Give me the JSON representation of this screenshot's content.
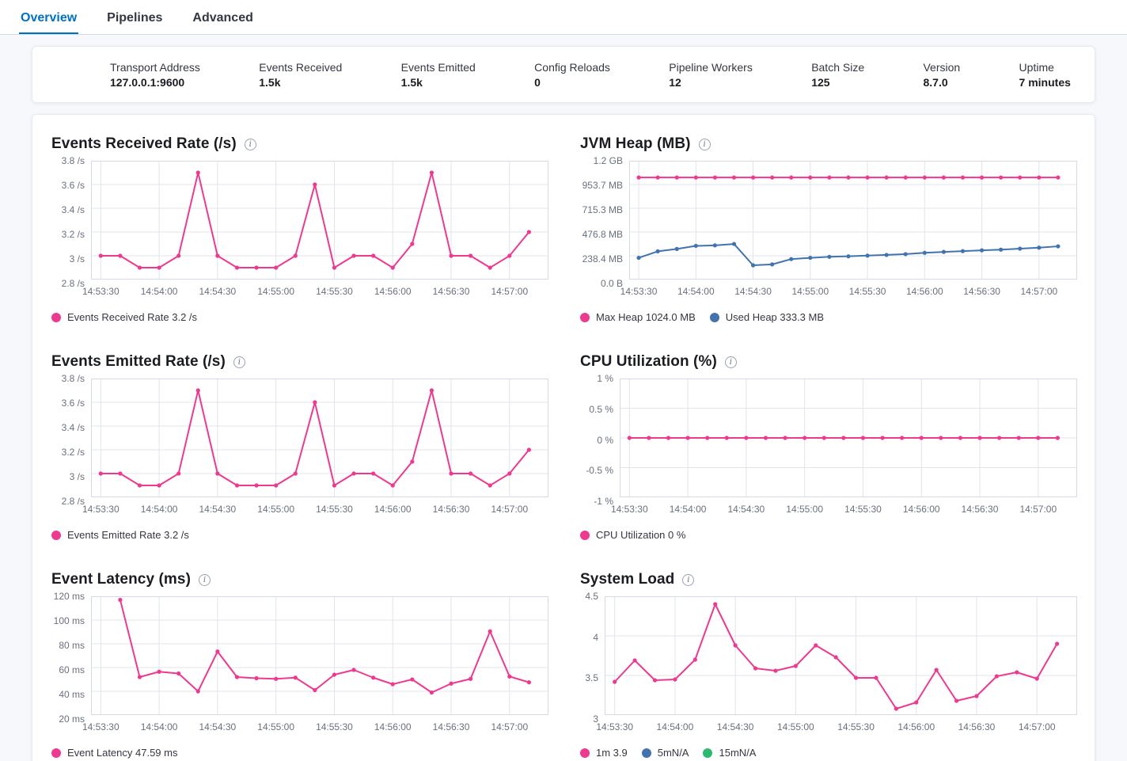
{
  "tabs": {
    "items": [
      {
        "label": "Overview",
        "active": true
      },
      {
        "label": "Pipelines",
        "active": false
      },
      {
        "label": "Advanced",
        "active": false
      }
    ]
  },
  "stats": {
    "items": [
      {
        "label": "Transport Address",
        "value": "127.0.0.1:9600"
      },
      {
        "label": "Events Received",
        "value": "1.5k"
      },
      {
        "label": "Events Emitted",
        "value": "1.5k"
      },
      {
        "label": "Config Reloads",
        "value": "0"
      },
      {
        "label": "Pipeline Workers",
        "value": "12"
      },
      {
        "label": "Batch Size",
        "value": "125"
      },
      {
        "label": "Version",
        "value": "8.7.0"
      },
      {
        "label": "Uptime",
        "value": "7 minutes"
      }
    ]
  },
  "colors": {
    "pink": "#ED398F",
    "blue": "#4273AE",
    "green": "#2FB96E",
    "accent_blue": "#0071C2",
    "gridline": "#E0E4EB",
    "plot_border": "#D3DAE6"
  },
  "chart_data": [
    {
      "type": "line",
      "title": "Events Received Rate (/s)",
      "x": [
        "14:53:30",
        "14:53:40",
        "14:53:50",
        "14:54:00",
        "14:54:10",
        "14:54:20",
        "14:54:30",
        "14:54:40",
        "14:54:50",
        "14:55:00",
        "14:55:10",
        "14:55:20",
        "14:55:30",
        "14:55:40",
        "14:55:50",
        "14:56:00",
        "14:56:10",
        "14:56:20",
        "14:56:30",
        "14:56:40",
        "14:56:50",
        "14:57:00",
        "14:57:10"
      ],
      "x_tick_labels": [
        "14:53:30",
        "14:54:00",
        "14:54:30",
        "14:55:00",
        "14:55:30",
        "14:56:00",
        "14:56:30",
        "14:57:00"
      ],
      "x_tick_step": 3,
      "x_domain": [
        -0.5,
        23
      ],
      "y_min": 2.8,
      "y_max": 3.8,
      "y_ticks": [
        {
          "value": 3.8,
          "label": "3.8 /s"
        },
        {
          "value": 3.6,
          "label": "3.6 /s"
        },
        {
          "value": 3.4,
          "label": "3.4 /s"
        },
        {
          "value": 3.2,
          "label": "3.2 /s"
        },
        {
          "value": 3.0,
          "label": "3 /s"
        },
        {
          "value": 2.8,
          "label": "2.8 /s"
        }
      ],
      "series": [
        {
          "name": "Events Received Rate",
          "color": "pink",
          "start": 0,
          "values": [
            3,
            3,
            2.9,
            2.9,
            3,
            3.7,
            3,
            2.9,
            2.9,
            2.9,
            3,
            3.6,
            2.9,
            3,
            3,
            2.9,
            3.1,
            3.7,
            3,
            3,
            2.9,
            3,
            3.2
          ]
        }
      ],
      "legend": [
        {
          "color": "pink",
          "label": "Events Received Rate 3.2 /s"
        }
      ]
    },
    {
      "type": "line",
      "title": "JVM Heap (MB)",
      "x": [
        "14:53:30",
        "14:53:40",
        "14:53:50",
        "14:54:00",
        "14:54:10",
        "14:54:20",
        "14:54:30",
        "14:54:40",
        "14:54:50",
        "14:55:00",
        "14:55:10",
        "14:55:20",
        "14:55:30",
        "14:55:40",
        "14:55:50",
        "14:56:00",
        "14:56:10",
        "14:56:20",
        "14:56:30",
        "14:56:40",
        "14:56:50",
        "14:57:00",
        "14:57:10"
      ],
      "x_tick_labels": [
        "14:53:30",
        "14:54:00",
        "14:54:30",
        "14:55:00",
        "14:55:30",
        "14:56:00",
        "14:56:30",
        "14:57:00"
      ],
      "x_tick_step": 3,
      "x_domain": [
        -0.5,
        23
      ],
      "y_min": 0,
      "y_max": 1192.1,
      "y_ticks": [
        {
          "value": 1192.1,
          "label": "1.2 GB"
        },
        {
          "value": 953.7,
          "label": "953.7 MB"
        },
        {
          "value": 715.3,
          "label": "715.3 MB"
        },
        {
          "value": 476.8,
          "label": "476.8 MB"
        },
        {
          "value": 238.4,
          "label": "238.4 MB"
        },
        {
          "value": 0,
          "label": "0.0 B"
        }
      ],
      "series": [
        {
          "name": "Max Heap",
          "color": "pink",
          "start": 0,
          "values": [
            1024,
            1024,
            1024,
            1024,
            1024,
            1024,
            1024,
            1024,
            1024,
            1024,
            1024,
            1024,
            1024,
            1024,
            1024,
            1024,
            1024,
            1024,
            1024,
            1024,
            1024,
            1024,
            1024
          ]
        },
        {
          "name": "Used Heap",
          "color": "blue",
          "start": 0,
          "values": [
            218,
            283,
            307,
            338,
            343,
            357,
            143,
            152,
            205,
            218,
            228,
            233,
            240,
            247,
            255,
            268,
            277,
            285,
            293,
            300,
            310,
            320,
            333.3
          ]
        }
      ],
      "legend": [
        {
          "color": "pink",
          "label": "Max Heap 1024.0 MB"
        },
        {
          "color": "blue",
          "label": "Used Heap 333.3 MB"
        }
      ]
    },
    {
      "type": "line",
      "title": "Events Emitted Rate (/s)",
      "x": [
        "14:53:30",
        "14:53:40",
        "14:53:50",
        "14:54:00",
        "14:54:10",
        "14:54:20",
        "14:54:30",
        "14:54:40",
        "14:54:50",
        "14:55:00",
        "14:55:10",
        "14:55:20",
        "14:55:30",
        "14:55:40",
        "14:55:50",
        "14:56:00",
        "14:56:10",
        "14:56:20",
        "14:56:30",
        "14:56:40",
        "14:56:50",
        "14:57:00",
        "14:57:10"
      ],
      "x_tick_labels": [
        "14:53:30",
        "14:54:00",
        "14:54:30",
        "14:55:00",
        "14:55:30",
        "14:56:00",
        "14:56:30",
        "14:57:00"
      ],
      "x_tick_step": 3,
      "x_domain": [
        -0.5,
        23
      ],
      "y_min": 2.8,
      "y_max": 3.8,
      "y_ticks": [
        {
          "value": 3.8,
          "label": "3.8 /s"
        },
        {
          "value": 3.6,
          "label": "3.6 /s"
        },
        {
          "value": 3.4,
          "label": "3.4 /s"
        },
        {
          "value": 3.2,
          "label": "3.2 /s"
        },
        {
          "value": 3.0,
          "label": "3 /s"
        },
        {
          "value": 2.8,
          "label": "2.8 /s"
        }
      ],
      "series": [
        {
          "name": "Events Emitted Rate",
          "color": "pink",
          "start": 0,
          "values": [
            3,
            3,
            2.9,
            2.9,
            3,
            3.7,
            3,
            2.9,
            2.9,
            2.9,
            3,
            3.6,
            2.9,
            3,
            3,
            2.9,
            3.1,
            3.7,
            3,
            3,
            2.9,
            3,
            3.2
          ]
        }
      ],
      "legend": [
        {
          "color": "pink",
          "label": "Events Emitted Rate 3.2 /s"
        }
      ]
    },
    {
      "type": "line",
      "title": "CPU Utilization (%)",
      "x": [
        "14:53:30",
        "14:53:40",
        "14:53:50",
        "14:54:00",
        "14:54:10",
        "14:54:20",
        "14:54:30",
        "14:54:40",
        "14:54:50",
        "14:55:00",
        "14:55:10",
        "14:55:20",
        "14:55:30",
        "14:55:40",
        "14:55:50",
        "14:56:00",
        "14:56:10",
        "14:56:20",
        "14:56:30",
        "14:56:40",
        "14:56:50",
        "14:57:00",
        "14:57:10"
      ],
      "x_tick_labels": [
        "14:53:30",
        "14:54:00",
        "14:54:30",
        "14:55:00",
        "14:55:30",
        "14:56:00",
        "14:56:30",
        "14:57:00"
      ],
      "x_tick_step": 3,
      "x_domain": [
        -0.5,
        23
      ],
      "y_min": -1,
      "y_max": 1,
      "y_ticks": [
        {
          "value": 1,
          "label": "1 %"
        },
        {
          "value": 0.5,
          "label": "0.5 %"
        },
        {
          "value": 0,
          "label": "0 %"
        },
        {
          "value": -0.5,
          "label": "-0.5 %"
        },
        {
          "value": -1,
          "label": "-1 %"
        }
      ],
      "series": [
        {
          "name": "CPU Utilization",
          "color": "pink",
          "start": 0,
          "values": [
            0,
            0,
            0,
            0,
            0,
            0,
            0,
            0,
            0,
            0,
            0,
            0,
            0,
            0,
            0,
            0,
            0,
            0,
            0,
            0,
            0,
            0,
            0
          ]
        }
      ],
      "legend": [
        {
          "color": "pink",
          "label": "CPU Utilization 0 %"
        }
      ]
    },
    {
      "type": "line",
      "title": "Event Latency (ms)",
      "x": [
        "14:53:40",
        "14:53:50",
        "14:54:00",
        "14:54:10",
        "14:54:20",
        "14:54:30",
        "14:54:40",
        "14:54:50",
        "14:55:00",
        "14:55:10",
        "14:55:20",
        "14:55:30",
        "14:55:40",
        "14:55:50",
        "14:56:00",
        "14:56:10",
        "14:56:20",
        "14:56:30",
        "14:56:40",
        "14:56:50",
        "14:57:00",
        "14:57:10"
      ],
      "x_tick_labels": [
        "14:53:30",
        "14:54:00",
        "14:54:30",
        "14:55:00",
        "14:55:30",
        "14:56:00",
        "14:56:30",
        "14:57:00"
      ],
      "x_tick_step": 3,
      "x_domain": [
        -0.5,
        23
      ],
      "y_min": 20,
      "y_max": 120,
      "y_ticks": [
        {
          "value": 120,
          "label": "120 ms"
        },
        {
          "value": 100,
          "label": "100 ms"
        },
        {
          "value": 80,
          "label": "80 ms"
        },
        {
          "value": 60,
          "label": "60 ms"
        },
        {
          "value": 40,
          "label": "40 ms"
        },
        {
          "value": 20,
          "label": "20 ms"
        }
      ],
      "series": [
        {
          "name": "Event Latency",
          "color": "pink",
          "start": 1,
          "values": [
            117,
            52,
            56.5,
            55,
            40,
            73.5,
            52,
            51,
            50.5,
            51.5,
            41,
            54,
            58,
            51.5,
            46,
            50,
            39,
            46.5,
            50.5,
            90.5,
            52.5,
            47.59
          ]
        }
      ],
      "legend": [
        {
          "color": "pink",
          "label": "Event Latency 47.59 ms"
        }
      ]
    },
    {
      "type": "line",
      "title": "System Load",
      "x": [
        "14:53:30",
        "14:53:40",
        "14:53:50",
        "14:54:00",
        "14:54:10",
        "14:54:20",
        "14:54:30",
        "14:54:40",
        "14:54:50",
        "14:55:00",
        "14:55:10",
        "14:55:20",
        "14:55:30",
        "14:55:40",
        "14:55:50",
        "14:56:00",
        "14:56:10",
        "14:56:20",
        "14:56:30",
        "14:56:40",
        "14:56:50",
        "14:57:00",
        "14:57:10"
      ],
      "x_tick_labels": [
        "14:53:30",
        "14:54:00",
        "14:54:30",
        "14:55:00",
        "14:55:30",
        "14:56:00",
        "14:56:30",
        "14:57:00"
      ],
      "x_tick_step": 3,
      "x_domain": [
        -0.5,
        23
      ],
      "y_min": 3,
      "y_max": 4.5,
      "y_ticks": [
        {
          "value": 4.5,
          "label": "4.5"
        },
        {
          "value": 4,
          "label": "4"
        },
        {
          "value": 3.5,
          "label": "3.5"
        },
        {
          "value": 3,
          "label": "3"
        }
      ],
      "series": [
        {
          "name": "1m",
          "color": "pink",
          "start": 0,
          "values": [
            3.42,
            3.69,
            3.44,
            3.45,
            3.7,
            4.4,
            3.88,
            3.59,
            3.56,
            3.62,
            3.88,
            3.73,
            3.47,
            3.47,
            3.08,
            3.16,
            3.57,
            3.18,
            3.24,
            3.49,
            3.54,
            3.46,
            3.9
          ]
        }
      ],
      "legend": [
        {
          "color": "pink",
          "label": "1m 3.9"
        },
        {
          "color": "blue",
          "label": "5mN/A"
        },
        {
          "color": "green",
          "label": "15mN/A"
        }
      ]
    }
  ]
}
